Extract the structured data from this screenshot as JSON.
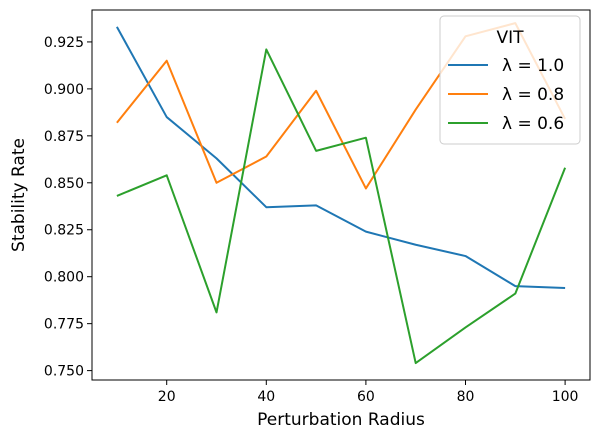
{
  "chart_data": {
    "type": "line",
    "xlabel": "Perturbation Radius",
    "ylabel": "Stability Rate",
    "xlim": [
      5,
      105
    ],
    "ylim": [
      0.745,
      0.942
    ],
    "xticks": [
      20,
      40,
      60,
      80,
      100
    ],
    "yticks": [
      0.75,
      0.775,
      0.8,
      0.825,
      0.85,
      0.875,
      0.9,
      0.925
    ],
    "ytick_labels": [
      "0.750",
      "0.775",
      "0.800",
      "0.825",
      "0.850",
      "0.875",
      "0.900",
      "0.925"
    ],
    "grid": false,
    "legend": {
      "title": "VIT",
      "placement": "top-right"
    },
    "x": [
      10,
      20,
      30,
      40,
      50,
      60,
      70,
      80,
      90,
      100
    ],
    "series": [
      {
        "name": "λ = 1.0",
        "color": "#1f77b4",
        "values": [
          0.933,
          0.885,
          0.863,
          0.837,
          0.838,
          0.824,
          0.817,
          0.811,
          0.795,
          0.794
        ]
      },
      {
        "name": "λ = 0.8",
        "color": "#ff7f0e",
        "values": [
          0.882,
          0.915,
          0.85,
          0.864,
          0.899,
          0.847,
          0.889,
          0.928,
          0.935,
          0.884
        ]
      },
      {
        "name": "λ = 0.6",
        "color": "#2ca02c",
        "values": [
          0.843,
          0.854,
          0.781,
          0.921,
          0.867,
          0.874,
          0.754,
          0.773,
          0.791,
          0.858
        ]
      }
    ]
  }
}
